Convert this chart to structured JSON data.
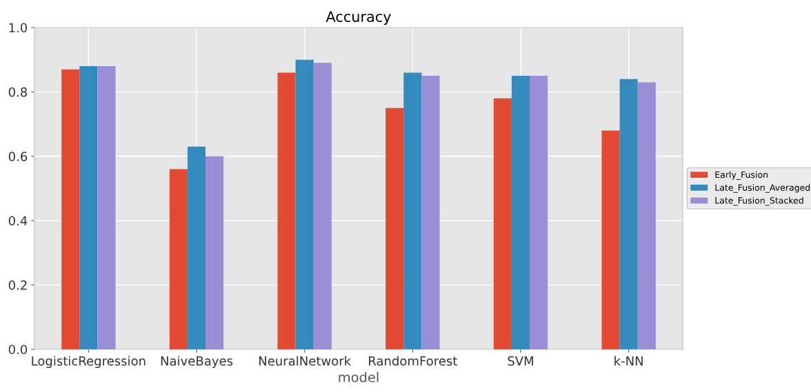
{
  "chart_data": {
    "type": "bar",
    "title": "Accuracy",
    "xlabel": "model",
    "categories": [
      "LogisticRegression",
      "NaiveBayes",
      "NeuralNetwork",
      "RandomForest",
      "SVM",
      "k-NN"
    ],
    "series": [
      {
        "name": "Early_Fusion",
        "color": "#e24a33",
        "values": [
          0.87,
          0.56,
          0.86,
          0.75,
          0.78,
          0.68
        ]
      },
      {
        "name": "Late_Fusion_Averaged",
        "color": "#348abd",
        "values": [
          0.88,
          0.63,
          0.9,
          0.86,
          0.85,
          0.84
        ]
      },
      {
        "name": "Late_Fusion_Stacked",
        "color": "#988ed5",
        "values": [
          0.88,
          0.6,
          0.89,
          0.85,
          0.85,
          0.83
        ]
      }
    ],
    "ylim": [
      0,
      1.0
    ],
    "yticks": [
      {
        "value": 0,
        "label": "0.0"
      },
      0.2,
      0.4,
      0.6,
      0.8,
      {
        "value": 1.0,
        "label": "1.0"
      }
    ],
    "grid": true,
    "legend": "right"
  }
}
